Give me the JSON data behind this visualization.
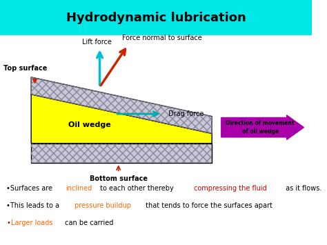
{
  "title": "Hydrodynamic lubrication",
  "title_bg_color": "#00e8e8",
  "title_fontsize": 13,
  "bg_color": "#ffffff",
  "top_surface_label": "Top surface",
  "bottom_surface_label": "Bottom surface",
  "oil_wedge_label": "Oil wedge",
  "drag_force_label": "Drag force",
  "lift_force_label": "Lift force",
  "normal_force_label": "Force normal to surface",
  "direction_label": "Direction of movement\nof oil wedge",
  "hatch_color": "#c8c8d8",
  "hatch_pattern": "xxx",
  "oil_color": "#ffff00",
  "arrow_purple": "#aa00aa",
  "arrow_cyan": "#00bcd4",
  "arrow_red": "#cc2200",
  "arrow_teal": "#00aaaa",
  "line1_parts": [
    {
      "text": "•Surfaces are ",
      "color": "#000000"
    },
    {
      "text": "inclined",
      "color": "#ff6600"
    },
    {
      "text": " to each other thereby ",
      "color": "#000000"
    },
    {
      "text": "compressing the fluid",
      "color": "#cc0000"
    },
    {
      "text": " as it flows.",
      "color": "#000000"
    }
  ],
  "line2_parts": [
    {
      "text": "•This leads to a ",
      "color": "#000000"
    },
    {
      "text": "pressure buildup",
      "color": "#ff6600"
    },
    {
      "text": " that tends to force the surfaces apart",
      "color": "#000000"
    }
  ],
  "line3_parts": [
    {
      "text": "•",
      "color": "#cc0000"
    },
    {
      "text": "Larger loads",
      "color": "#ff6600"
    },
    {
      "text": " can be carried",
      "color": "#000000"
    }
  ]
}
